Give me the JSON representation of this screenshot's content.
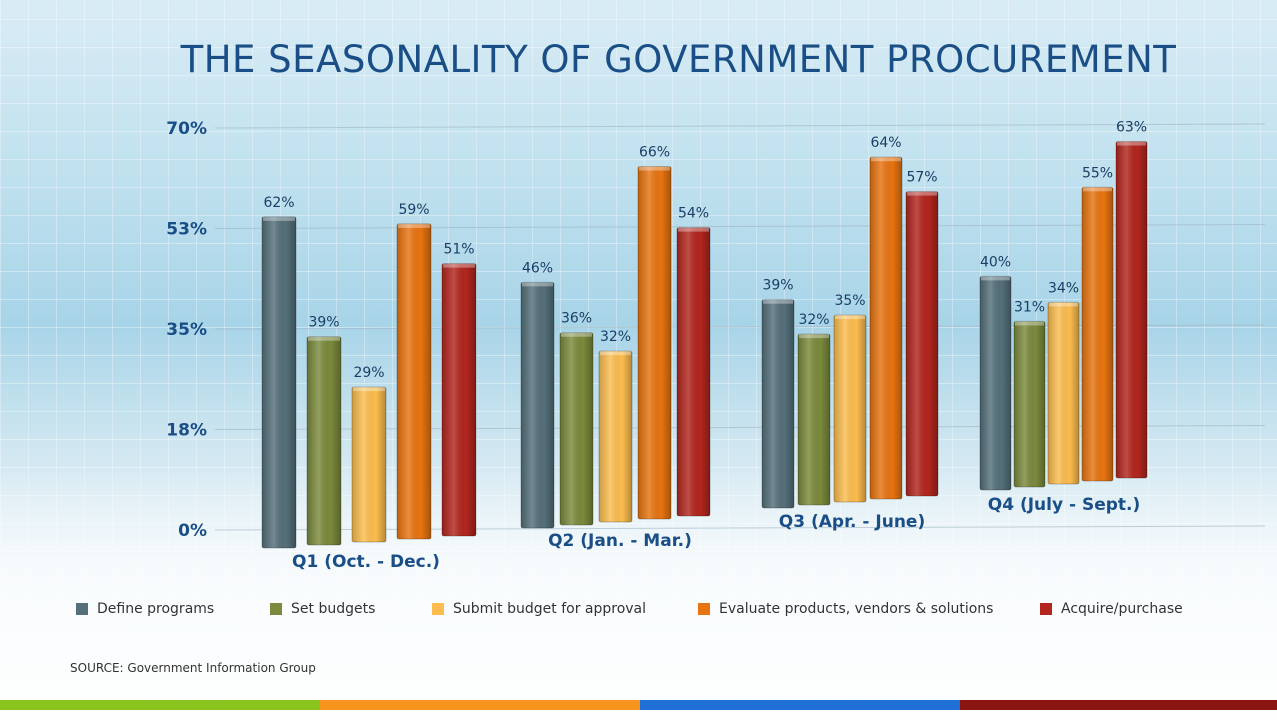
{
  "title": "THE SEASONALITY OF GOVERNMENT PROCUREMENT",
  "source": "SOURCE:  Government Information Group",
  "colors": {
    "title": "#1a4e86",
    "bottom_bars": [
      "#8cc41e",
      "#f7941d",
      "#1f6fd6",
      "#8b1511"
    ]
  },
  "chart_data": {
    "type": "bar",
    "title": "THE SEASONALITY OF GOVERNMENT PROCUREMENT",
    "categories": [
      "Q1 (Oct. - Dec.)",
      "Q2 (Jan. - Mar.)",
      "Q3 (Apr. - June)",
      "Q4 (July - Sept.)"
    ],
    "y_ticks": [
      "70%",
      "53%",
      "35%",
      "18%",
      "0%"
    ],
    "ylim": [
      0,
      70
    ],
    "grid": true,
    "legend_position": "bottom",
    "series": [
      {
        "name": "Define programs",
        "color": "#55707a",
        "values": [
          62,
          46,
          39,
          40
        ],
        "labels": [
          "62%",
          "46%",
          "39%",
          "40%"
        ]
      },
      {
        "name": "Set budgets",
        "color": "#7b8a3c",
        "values": [
          39,
          36,
          32,
          31
        ],
        "labels": [
          "39%",
          "36%",
          "32%",
          "31%"
        ]
      },
      {
        "name": "Submit budget for approval",
        "color": "#fcbd4e",
        "values": [
          29,
          32,
          35,
          34
        ],
        "labels": [
          "29%",
          "32%",
          "35%",
          "34%"
        ]
      },
      {
        "name": "Evaluate products, vendors & solutions",
        "color": "#e87411",
        "values": [
          59,
          66,
          64,
          55
        ],
        "labels": [
          "59%",
          "66%",
          "64%",
          "55%"
        ]
      },
      {
        "name": "Acquire/purchase",
        "color": "#b2261e",
        "values": [
          51,
          54,
          57,
          63
        ],
        "labels": [
          "51%",
          "54%",
          "57%",
          "63%"
        ]
      }
    ]
  }
}
